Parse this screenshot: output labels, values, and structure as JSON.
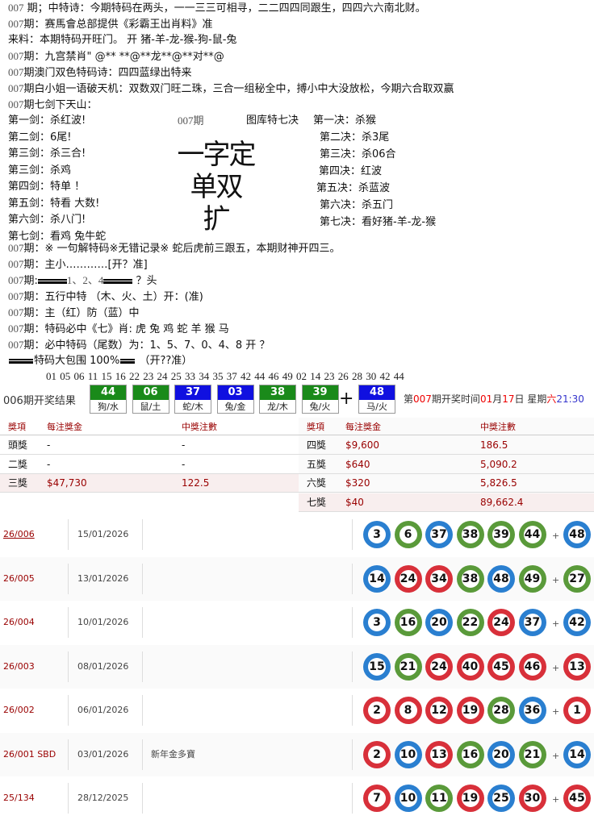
{
  "lines_top": [
    {
      "p": "007",
      "t": " 期；中特诗：今期特码在两头，一一三三可相寻，二二四四同跟生，四四六六南北财。"
    },
    {
      "p": "007",
      "t": "期：赛馬會总部提供《彩霸王出肖料》准"
    },
    {
      "p": "",
      "t": "来料：本期特码开旺门。   开 猪-羊-龙-猴-狗-鼠-兔"
    },
    {
      "p": "007",
      "t": "期：九宫禁肖\" @** **@**龙**@**对**@"
    },
    {
      "p": "007",
      "t": "期澳门双色特码诗：四四蓝绿出特来"
    },
    {
      "p": "007",
      "t": "期白小姐一语破天机：双数双门旺二珠，三合一组秘全中，搏小中大没放松，今期六合取双赢"
    },
    {
      "p": "007",
      "t": "期七剑下天山："
    }
  ],
  "swords": [
    "第一剑：杀红波!",
    "第二剑：6尾!",
    "第三剑：杀三合!",
    "第三剑：杀鸡",
    "第四剑：特单 ！",
    "第五剑：特看 大数!",
    "第六剑：杀八门!",
    "第七剑：看鸡 兔牛蛇"
  ],
  "center_period": "007期",
  "tuku_title": "图库特七决",
  "jue": [
    "第一决：杀猴",
    "第二决：杀3尾",
    "第三决：杀06合",
    "第四决：红波",
    "第五决：杀蓝波",
    "第六决：杀五门",
    "第七决：看好猪-羊-龙-猴"
  ],
  "big_text": [
    "一字定单双",
    "扩"
  ],
  "lines_mid": [
    {
      "p": "007",
      "t": "期：※ 一句解特码※无错记录※ 蛇后虎前三跟五，本期财神开四三。"
    },
    {
      "p": "007",
      "t": "期：主小…………[开？准]"
    },
    {
      "p": "007",
      "t": "期:",
      "bars_before": 3,
      "mid": "1、2、4",
      "bars_after": 3,
      "end": " ？头"
    },
    {
      "p": "007",
      "t": "期：五行中特  （木、火、土）开：(准)"
    },
    {
      "p": "007",
      "t": "期：主（红）防（蓝）中"
    },
    {
      "p": "007",
      "t": "期：特码必中《七》肖: 虎 兔 鸡  蛇  羊  猴  马"
    },
    {
      "p": "007",
      "t": "期：必中特码（尾数）为：1、5、7、0、4、8    开 ？"
    }
  ],
  "baowei": {
    "t": "特码大包围 100%",
    "end": " （开??准）"
  },
  "number_list": "01 05 06 11 15 16 22 23 24 25 33 34 35 37 42 44 46 49 02 14 23 26 28 30 42 44",
  "result": {
    "label": "006期开奖结果",
    "balls": [
      {
        "n": "44",
        "z": "狗/水",
        "c": "#1a8a1a"
      },
      {
        "n": "06",
        "z": "鼠/土",
        "c": "#1a8a1a"
      },
      {
        "n": "37",
        "z": "蛇/木",
        "c": "#1010e0"
      },
      {
        "n": "03",
        "z": "兔/金",
        "c": "#1010e0"
      },
      {
        "n": "38",
        "z": "龙/木",
        "c": "#1a8a1a"
      },
      {
        "n": "39",
        "z": "兔/火",
        "c": "#1a8a1a"
      }
    ],
    "plus": "+",
    "special": {
      "n": "48",
      "z": "马/火",
      "c": "#1010e0"
    },
    "next": {
      "a": "第",
      "period": "007",
      "b": "期开奖时间",
      "month": "01",
      "c": "月",
      "day": "17",
      "d": "日  星期",
      "wd": "六",
      "time": "21:30"
    }
  },
  "prize": {
    "headers": [
      "獎項",
      "每注獎金",
      "中獎注數"
    ],
    "left": [
      [
        "頭獎",
        "-",
        "-"
      ],
      [
        "二獎",
        "-",
        "-"
      ],
      [
        "三獎",
        "$47,730",
        "122.5"
      ]
    ],
    "right": [
      [
        "四獎",
        "$9,600",
        "186.5"
      ],
      [
        "五獎",
        "$640",
        "5,090.2"
      ],
      [
        "六獎",
        "$320",
        "5,826.5"
      ],
      [
        "七獎",
        "$40",
        "89,662.4"
      ]
    ]
  },
  "draws": [
    {
      "id": "26/006",
      "date": "15/01/2026",
      "note": "",
      "balls": [
        [
          "3",
          "b"
        ],
        [
          "6",
          "g"
        ],
        [
          "37",
          "b"
        ],
        [
          "38",
          "g"
        ],
        [
          "39",
          "g"
        ],
        [
          "44",
          "g"
        ]
      ],
      "sp": [
        "48",
        "b"
      ]
    },
    {
      "id": "26/005",
      "date": "13/01/2026",
      "note": "",
      "balls": [
        [
          "14",
          "b"
        ],
        [
          "24",
          "r"
        ],
        [
          "34",
          "r"
        ],
        [
          "38",
          "g"
        ],
        [
          "48",
          "b"
        ],
        [
          "49",
          "g"
        ]
      ],
      "sp": [
        "27",
        "g"
      ]
    },
    {
      "id": "26/004",
      "date": "10/01/2026",
      "note": "",
      "balls": [
        [
          "3",
          "b"
        ],
        [
          "16",
          "g"
        ],
        [
          "20",
          "b"
        ],
        [
          "22",
          "g"
        ],
        [
          "24",
          "r"
        ],
        [
          "37",
          "b"
        ]
      ],
      "sp": [
        "42",
        "b"
      ]
    },
    {
      "id": "26/003",
      "date": "08/01/2026",
      "note": "",
      "balls": [
        [
          "15",
          "b"
        ],
        [
          "21",
          "g"
        ],
        [
          "24",
          "r"
        ],
        [
          "40",
          "r"
        ],
        [
          "45",
          "r"
        ],
        [
          "46",
          "r"
        ]
      ],
      "sp": [
        "13",
        "r"
      ]
    },
    {
      "id": "26/002",
      "date": "06/01/2026",
      "note": "",
      "balls": [
        [
          "2",
          "r"
        ],
        [
          "8",
          "r"
        ],
        [
          "12",
          "r"
        ],
        [
          "19",
          "r"
        ],
        [
          "28",
          "g"
        ],
        [
          "36",
          "b"
        ]
      ],
      "sp": [
        "1",
        "r"
      ]
    },
    {
      "id": "26/001 SBD",
      "date": "03/01/2026",
      "note": "新年金多寶",
      "balls": [
        [
          "2",
          "r"
        ],
        [
          "10",
          "b"
        ],
        [
          "13",
          "r"
        ],
        [
          "16",
          "g"
        ],
        [
          "20",
          "b"
        ],
        [
          "21",
          "g"
        ]
      ],
      "sp": [
        "14",
        "b"
      ]
    },
    {
      "id": "25/134",
      "date": "28/12/2025",
      "note": "",
      "balls": [
        [
          "7",
          "r"
        ],
        [
          "10",
          "b"
        ],
        [
          "11",
          "g"
        ],
        [
          "19",
          "r"
        ],
        [
          "25",
          "b"
        ],
        [
          "30",
          "r"
        ]
      ],
      "sp": [
        "45",
        "r"
      ]
    }
  ],
  "ball_colors": {
    "r": "#d8303a",
    "b": "#2a7fd0",
    "g": "#5a9a3a"
  }
}
